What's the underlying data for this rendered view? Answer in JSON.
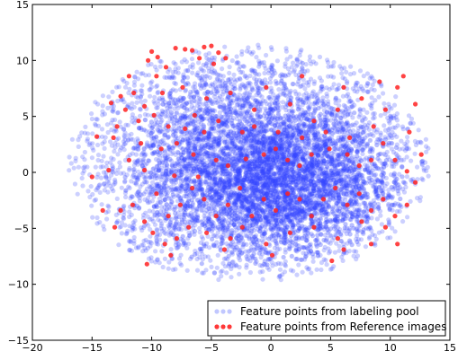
{
  "chart_data": {
    "type": "scatter",
    "title": "",
    "xlabel": "",
    "ylabel": "",
    "xlim": [
      -20,
      15
    ],
    "ylim": [
      -15,
      15
    ],
    "x_ticks": [
      -20,
      -15,
      -10,
      -5,
      0,
      5,
      10,
      15
    ],
    "y_ticks": [
      -15,
      -10,
      -5,
      0,
      5,
      10,
      15
    ],
    "x_tick_labels": [
      "−20",
      "−15",
      "−10",
      "−5",
      "0",
      "5",
      "10",
      "15"
    ],
    "y_tick_labels": [
      "−15",
      "−10",
      "−5",
      "0",
      "5",
      "10",
      "15"
    ],
    "grid": false,
    "legend_position": "lower-right",
    "series": [
      {
        "name": "Feature points from labeling pool",
        "color": "#3344ff",
        "marker": "circle",
        "opacity": 0.25,
        "distribution": "dense elliptical cloud, x approximately -17 to 13, y approximately -10 to 11.5, center near (0, -1)",
        "sample_points": [
          [
            -17.0,
            -0.5
          ],
          [
            -16.0,
            5.5
          ],
          [
            -15.0,
            -4.5
          ],
          [
            -12.0,
            8.5
          ],
          [
            -10.0,
            -8.0
          ],
          [
            -6.0,
            10.0
          ],
          [
            -3.0,
            -10.0
          ],
          [
            0.0,
            -1.0
          ],
          [
            1.0,
            11.5
          ],
          [
            5.0,
            -9.5
          ],
          [
            8.0,
            10.0
          ],
          [
            12.0,
            5.0
          ],
          [
            13.0,
            -1.0
          ],
          [
            11.0,
            -7.0
          ]
        ]
      },
      {
        "name": "Feature points from Reference images",
        "color": "#ff2222",
        "marker": "circle",
        "opacity": 0.85,
        "points": [
          [
            -10.0,
            10.8
          ],
          [
            -9.5,
            10.3
          ],
          [
            -10.3,
            10.0
          ],
          [
            -8.0,
            11.1
          ],
          [
            -7.2,
            11.0
          ],
          [
            -6.6,
            10.9
          ],
          [
            -5.6,
            11.2
          ],
          [
            -5.0,
            11.3
          ],
          [
            -4.4,
            10.7
          ],
          [
            -3.8,
            10.2
          ],
          [
            -4.8,
            9.7
          ],
          [
            -6.0,
            10.2
          ],
          [
            -8.8,
            9.4
          ],
          [
            -9.6,
            8.6
          ],
          [
            -11.5,
            7.1
          ],
          [
            -12.6,
            6.8
          ],
          [
            -13.4,
            6.2
          ],
          [
            -12.2,
            5.6
          ],
          [
            -10.6,
            5.9
          ],
          [
            -9.8,
            5.1
          ],
          [
            -11.1,
            4.6
          ],
          [
            -12.9,
            4.1
          ],
          [
            -8.6,
            4.1
          ],
          [
            -7.2,
            3.9
          ],
          [
            -5.6,
            3.6
          ],
          [
            -14.6,
            3.2
          ],
          [
            -13.2,
            3.1
          ],
          [
            -10.9,
            2.6
          ],
          [
            -9.2,
            2.1
          ],
          [
            -6.5,
            1.6
          ],
          [
            -4.6,
            1.1
          ],
          [
            -11.9,
            1.1
          ],
          [
            -13.6,
            0.2
          ],
          [
            -15.0,
            -0.4
          ],
          [
            -10.6,
            0.2
          ],
          [
            -8.1,
            -0.3
          ],
          [
            -6.1,
            -0.4
          ],
          [
            -3.6,
            0.6
          ],
          [
            -2.1,
            1.2
          ],
          [
            -0.6,
            1.6
          ],
          [
            0.4,
            2.1
          ],
          [
            1.4,
            1.1
          ],
          [
            2.4,
            0.6
          ],
          [
            3.4,
            1.6
          ],
          [
            4.9,
            2.1
          ],
          [
            6.4,
            1.6
          ],
          [
            7.4,
            0.6
          ],
          [
            8.4,
            1.1
          ],
          [
            9.4,
            2.6
          ],
          [
            10.4,
            1.1
          ],
          [
            11.4,
            0.1
          ],
          [
            12.1,
            -0.9
          ],
          [
            11.4,
            -2.9
          ],
          [
            10.4,
            -3.9
          ],
          [
            9.4,
            -2.4
          ],
          [
            8.4,
            -3.4
          ],
          [
            7.4,
            -1.9
          ],
          [
            6.4,
            -2.9
          ],
          [
            5.4,
            -1.4
          ],
          [
            4.4,
            -2.4
          ],
          [
            3.4,
            -3.9
          ],
          [
            2.4,
            -2.4
          ],
          [
            1.4,
            -1.9
          ],
          [
            0.4,
            -3.4
          ],
          [
            -0.6,
            -2.4
          ],
          [
            -1.6,
            -3.9
          ],
          [
            -2.6,
            -1.4
          ],
          [
            -3.6,
            -2.9
          ],
          [
            -4.6,
            -3.9
          ],
          [
            -5.6,
            -2.4
          ],
          [
            -6.6,
            -1.4
          ],
          [
            -7.6,
            -2.9
          ],
          [
            -8.6,
            -3.9
          ],
          [
            -9.6,
            -1.9
          ],
          [
            -10.6,
            -4.4
          ],
          [
            -11.6,
            -2.9
          ],
          [
            -12.6,
            -3.4
          ],
          [
            -14.1,
            -3.4
          ],
          [
            -13.1,
            -4.9
          ],
          [
            -9.9,
            -5.4
          ],
          [
            -8.9,
            -6.4
          ],
          [
            -7.9,
            -5.9
          ],
          [
            -6.9,
            -4.9
          ],
          [
            -5.4,
            -5.4
          ],
          [
            -3.4,
            -5.9
          ],
          [
            -2.4,
            -4.9
          ],
          [
            -0.4,
            -6.4
          ],
          [
            1.6,
            -5.4
          ],
          [
            3.6,
            -4.9
          ],
          [
            5.6,
            -5.9
          ],
          [
            7.6,
            -4.4
          ],
          [
            9.6,
            -4.9
          ],
          [
            8.4,
            -6.4
          ],
          [
            6.1,
            -6.9
          ],
          [
            10.6,
            -6.4
          ],
          [
            -10.4,
            -8.2
          ],
          [
            -8.4,
            -7.4
          ],
          [
            -3.9,
            -6.9
          ],
          [
            0.1,
            -7.4
          ],
          [
            5.1,
            -7.9
          ],
          [
            -7.4,
            7.6
          ],
          [
            -5.4,
            6.6
          ],
          [
            -3.4,
            7.1
          ],
          [
            -1.4,
            5.6
          ],
          [
            1.6,
            6.1
          ],
          [
            3.6,
            4.6
          ],
          [
            5.6,
            5.6
          ],
          [
            7.6,
            6.6
          ],
          [
            9.6,
            5.6
          ],
          [
            10.6,
            7.6
          ],
          [
            11.1,
            8.6
          ],
          [
            9.1,
            8.1
          ],
          [
            6.1,
            7.6
          ],
          [
            2.6,
            8.6
          ],
          [
            -0.4,
            7.6
          ],
          [
            -2.4,
            3.6
          ],
          [
            0.6,
            3.6
          ],
          [
            2.6,
            3.1
          ],
          [
            4.6,
            3.6
          ],
          [
            6.6,
            3.1
          ],
          [
            8.6,
            4.1
          ],
          [
            -6.4,
            5.1
          ],
          [
            -4.4,
            4.6
          ],
          [
            -1.4,
            4.1
          ],
          [
            12.1,
            6.1
          ],
          [
            11.6,
            3.6
          ],
          [
            12.6,
            1.6
          ],
          [
            -7.9,
            2.6
          ],
          [
            -9.1,
            7.1
          ],
          [
            -11.9,
            8.6
          ]
        ]
      }
    ]
  }
}
